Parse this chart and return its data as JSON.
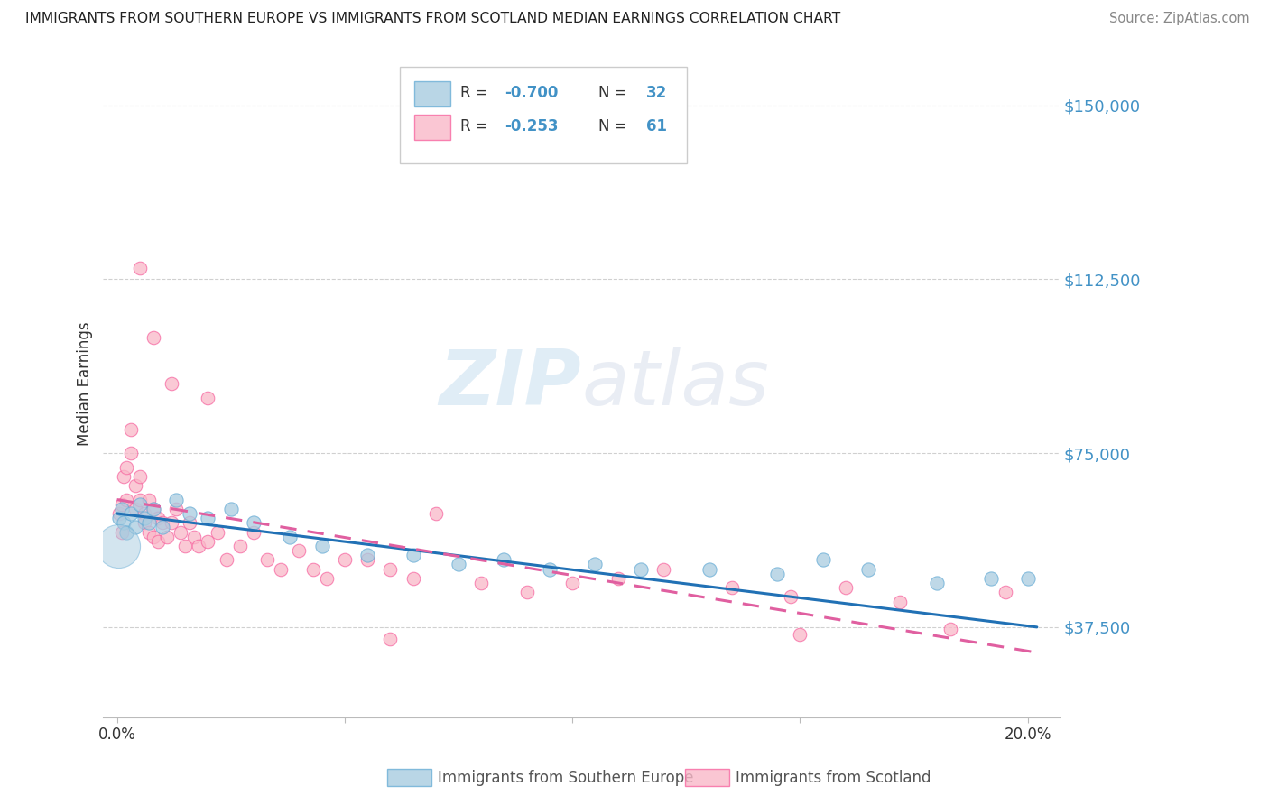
{
  "title": "IMMIGRANTS FROM SOUTHERN EUROPE VS IMMIGRANTS FROM SCOTLAND MEDIAN EARNINGS CORRELATION CHART",
  "source": "Source: ZipAtlas.com",
  "ylabel": "Median Earnings",
  "y_ticks": [
    37500,
    75000,
    112500,
    150000
  ],
  "y_tick_labels": [
    "$37,500",
    "$75,000",
    "$112,500",
    "$150,000"
  ],
  "y_min": 18000,
  "y_max": 162000,
  "x_min": -0.003,
  "x_max": 0.207,
  "blue_color": "#a8cce0",
  "blue_color_edge": "#6aaed6",
  "blue_line_color": "#2171b5",
  "pink_color": "#f9b8c8",
  "pink_color_edge": "#f768a1",
  "pink_line_color": "#e05fa0",
  "blue_R": -0.7,
  "blue_N": 32,
  "pink_R": -0.253,
  "pink_N": 61,
  "legend_label_blue": "Immigrants from Southern Europe",
  "legend_label_pink": "Immigrants from Scotland",
  "watermark_zip": "ZIP",
  "watermark_atlas": "atlas",
  "blue_scatter_x": [
    0.0005,
    0.001,
    0.0015,
    0.002,
    0.003,
    0.004,
    0.005,
    0.006,
    0.007,
    0.008,
    0.01,
    0.013,
    0.016,
    0.02,
    0.025,
    0.03,
    0.038,
    0.045,
    0.055,
    0.065,
    0.075,
    0.085,
    0.095,
    0.105,
    0.115,
    0.13,
    0.145,
    0.155,
    0.165,
    0.18,
    0.192,
    0.2
  ],
  "blue_scatter_y": [
    61000,
    63000,
    60000,
    58000,
    62000,
    59000,
    64000,
    61000,
    60000,
    63000,
    59000,
    65000,
    62000,
    61000,
    63000,
    60000,
    57000,
    55000,
    53000,
    53000,
    51000,
    52000,
    50000,
    51000,
    50000,
    50000,
    49000,
    52000,
    50000,
    47000,
    48000,
    48000
  ],
  "blue_scatter_size_large": [
    1200
  ],
  "blue_scatter_x_large": [
    0.0003
  ],
  "blue_scatter_y_large": [
    55000
  ],
  "pink_scatter_x": [
    0.0005,
    0.001,
    0.001,
    0.0015,
    0.002,
    0.002,
    0.003,
    0.003,
    0.004,
    0.004,
    0.005,
    0.005,
    0.006,
    0.006,
    0.007,
    0.007,
    0.008,
    0.008,
    0.009,
    0.009,
    0.01,
    0.011,
    0.012,
    0.013,
    0.014,
    0.015,
    0.016,
    0.017,
    0.018,
    0.02,
    0.022,
    0.024,
    0.027,
    0.03,
    0.033,
    0.036,
    0.04,
    0.043,
    0.046,
    0.05,
    0.055,
    0.06,
    0.065,
    0.07,
    0.08,
    0.09,
    0.1,
    0.11,
    0.12,
    0.135,
    0.148,
    0.16,
    0.172,
    0.183,
    0.195,
    0.005,
    0.008,
    0.012,
    0.02,
    0.06,
    0.15
  ],
  "pink_scatter_y": [
    62000,
    64000,
    58000,
    70000,
    72000,
    65000,
    80000,
    75000,
    68000,
    63000,
    70000,
    65000,
    62000,
    60000,
    65000,
    58000,
    63000,
    57000,
    61000,
    56000,
    60000,
    57000,
    60000,
    63000,
    58000,
    55000,
    60000,
    57000,
    55000,
    56000,
    58000,
    52000,
    55000,
    58000,
    52000,
    50000,
    54000,
    50000,
    48000,
    52000,
    52000,
    50000,
    48000,
    62000,
    47000,
    45000,
    47000,
    48000,
    50000,
    46000,
    44000,
    46000,
    43000,
    37000,
    45000,
    115000,
    100000,
    90000,
    87000,
    35000,
    36000
  ],
  "blue_line_x": [
    0.0,
    0.202
  ],
  "blue_line_y": [
    62000,
    37500
  ],
  "pink_line_x": [
    0.0,
    0.202
  ],
  "pink_line_y": [
    65000,
    32000
  ]
}
